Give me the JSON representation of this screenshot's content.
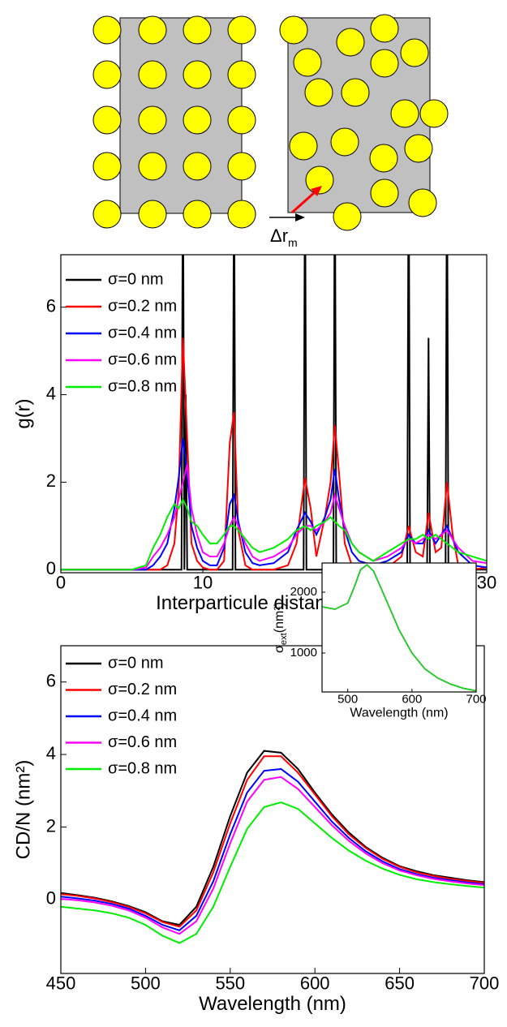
{
  "diagram": {
    "label": "Δr",
    "label_sub": "m"
  },
  "chart_data": [
    {
      "type": "line",
      "xlabel": "Interparticule distance (nm)",
      "ylabel": "g(r)",
      "xlim": [
        0,
        30
      ],
      "ylim": [
        -0.07,
        7.2
      ],
      "xticks": [
        0,
        10,
        20,
        30
      ],
      "yticks": [
        0,
        2,
        4,
        6
      ],
      "legend": "upper left",
      "x": [
        0,
        5,
        6,
        6.5,
        7,
        7.5,
        8,
        8.3,
        8.6,
        8.9,
        9.2,
        9.6,
        10,
        10.5,
        11,
        11.5,
        11.9,
        12.2,
        12.5,
        13,
        13.5,
        14,
        15,
        16,
        16.6,
        17.2,
        17.6,
        18,
        18.6,
        19.0,
        19.3,
        19.6,
        20,
        20.5,
        21,
        22,
        23,
        24,
        24.5,
        25,
        25.5,
        25.9,
        26.4,
        26.8,
        27.2,
        27.6,
        28,
        29,
        30
      ],
      "series": [
        {
          "name": "σ=0 nm",
          "color": "#000000",
          "x": [
            0,
            8.5,
            8.6,
            8.7,
            8.8,
            8.9,
            12.1,
            12.2,
            12.3,
            17.1,
            17.2,
            17.3,
            19.2,
            19.3,
            19.4,
            24.4,
            24.5,
            24.6,
            25.8,
            25.9,
            26.0,
            27.1,
            27.2,
            27.3,
            30
          ],
          "values": [
            0,
            0,
            10,
            0,
            4,
            0,
            0,
            10,
            0,
            0,
            10,
            0,
            0,
            10,
            0,
            0,
            10,
            0,
            0,
            5.3,
            0,
            0,
            10,
            0,
            0
          ]
        },
        {
          "name": "σ=0.2 nm",
          "color": "#ff0000",
          "values": [
            0,
            0,
            0,
            0,
            0,
            0.1,
            0.6,
            1.8,
            5.3,
            3.0,
            0.6,
            0.2,
            0.05,
            0,
            0,
            0.2,
            2.9,
            3.6,
            0.9,
            0.1,
            0,
            0,
            0,
            0.1,
            0.6,
            2.1,
            1.4,
            0.3,
            1.2,
            2.0,
            3.3,
            2.2,
            0.6,
            0.1,
            0,
            0,
            0.05,
            0.3,
            1.0,
            0.4,
            0.3,
            1.3,
            0.4,
            0.5,
            2.0,
            0.8,
            0.1,
            0,
            0.05
          ]
        },
        {
          "name": "σ=0.4 nm",
          "color": "#0000ff",
          "values": [
            0,
            0,
            0,
            0.1,
            0.3,
            0.6,
            1.4,
            2.1,
            3.0,
            2.2,
            1.0,
            0.5,
            0.2,
            0.1,
            0.1,
            0.5,
            1.5,
            1.7,
            1.1,
            0.4,
            0.15,
            0.1,
            0.15,
            0.4,
            0.9,
            1.3,
            1.1,
            0.8,
            1.2,
            1.6,
            2.3,
            1.6,
            0.9,
            0.4,
            0.2,
            0.1,
            0.2,
            0.4,
            0.8,
            0.6,
            0.6,
            0.9,
            0.6,
            0.8,
            1.0,
            0.7,
            0.4,
            0.1,
            0.05
          ]
        },
        {
          "name": "σ=0.6 nm",
          "color": "#ff00ff",
          "values": [
            0,
            0,
            0.05,
            0.3,
            0.5,
            0.8,
            1.2,
            1.6,
            2.0,
            2.4,
            1.4,
            0.8,
            0.4,
            0.3,
            0.3,
            0.6,
            1.0,
            1.2,
            1.0,
            0.6,
            0.3,
            0.2,
            0.3,
            0.5,
            0.8,
            1.0,
            1.0,
            0.9,
            1.1,
            1.3,
            1.7,
            1.4,
            1.0,
            0.6,
            0.4,
            0.2,
            0.3,
            0.5,
            0.7,
            0.6,
            0.7,
            0.8,
            0.7,
            0.8,
            0.9,
            0.7,
            0.5,
            0.2,
            0.15
          ]
        },
        {
          "name": "σ=0.8 nm",
          "color": "#00ee00",
          "values": [
            0,
            0,
            0.1,
            0.5,
            0.8,
            1.2,
            1.5,
            1.4,
            1.6,
            1.4,
            1.1,
            1.0,
            0.8,
            0.6,
            0.6,
            0.8,
            1.0,
            1.0,
            0.9,
            0.7,
            0.5,
            0.4,
            0.5,
            0.7,
            0.9,
            1.0,
            0.9,
            1.0,
            1.1,
            1.2,
            1.1,
            1.0,
            0.9,
            0.6,
            0.4,
            0.2,
            0.4,
            0.6,
            0.7,
            0.7,
            0.8,
            0.7,
            0.8,
            0.7,
            0.6,
            0.5,
            0.4,
            0.3,
            0.2
          ]
        }
      ]
    },
    {
      "type": "line",
      "xlabel": "Wavelength (nm)",
      "ylabel": "CD/N (nm²)",
      "xlim": [
        450,
        700
      ],
      "ylim": [
        -2.04,
        7.0
      ],
      "xticks": [
        450,
        500,
        550,
        600,
        650,
        700
      ],
      "yticks": [
        0,
        2,
        4,
        6
      ],
      "legend": "upper left",
      "x": [
        450,
        460,
        470,
        480,
        490,
        500,
        510,
        520,
        530,
        540,
        550,
        560,
        570,
        580,
        590,
        600,
        610,
        620,
        630,
        640,
        650,
        660,
        670,
        680,
        690,
        700
      ],
      "series": [
        {
          "name": "σ=0 nm",
          "color": "#000000",
          "values": [
            0.18,
            0.12,
            0.05,
            -0.05,
            -0.18,
            -0.35,
            -0.6,
            -0.7,
            -0.2,
            0.9,
            2.3,
            3.5,
            4.1,
            4.05,
            3.6,
            2.95,
            2.35,
            1.85,
            1.45,
            1.15,
            0.92,
            0.78,
            0.67,
            0.6,
            0.53,
            0.48
          ]
        },
        {
          "name": "σ=0.2 nm",
          "color": "#ff0000",
          "values": [
            0.15,
            0.1,
            0.03,
            -0.07,
            -0.2,
            -0.38,
            -0.62,
            -0.75,
            -0.3,
            0.75,
            2.1,
            3.3,
            3.95,
            3.95,
            3.5,
            2.9,
            2.3,
            1.8,
            1.42,
            1.12,
            0.9,
            0.75,
            0.65,
            0.57,
            0.51,
            0.46
          ]
        },
        {
          "name": "σ=0.4 nm",
          "color": "#0000ff",
          "values": [
            0.08,
            0.03,
            -0.03,
            -0.12,
            -0.25,
            -0.45,
            -0.7,
            -0.85,
            -0.45,
            0.5,
            1.8,
            2.95,
            3.55,
            3.6,
            3.25,
            2.7,
            2.15,
            1.7,
            1.33,
            1.05,
            0.84,
            0.7,
            0.6,
            0.53,
            0.47,
            0.42
          ]
        },
        {
          "name": "σ=0.6 nm",
          "color": "#ff00ff",
          "values": [
            0.02,
            -0.02,
            -0.08,
            -0.17,
            -0.3,
            -0.5,
            -0.77,
            -0.95,
            -0.6,
            0.3,
            1.55,
            2.7,
            3.3,
            3.38,
            3.05,
            2.55,
            2.05,
            1.62,
            1.27,
            1.0,
            0.8,
            0.67,
            0.57,
            0.5,
            0.44,
            0.4
          ]
        },
        {
          "name": "σ=0.8 nm",
          "color": "#00ee00",
          "values": [
            -0.2,
            -0.25,
            -0.3,
            -0.38,
            -0.5,
            -0.7,
            -1.0,
            -1.2,
            -0.95,
            -0.2,
            0.9,
            1.95,
            2.55,
            2.68,
            2.5,
            2.1,
            1.7,
            1.35,
            1.07,
            0.85,
            0.68,
            0.56,
            0.48,
            0.42,
            0.37,
            0.33
          ]
        }
      ]
    },
    {
      "type": "line",
      "xlabel": "Wavelength (nm)",
      "ylabel": "σ",
      "ylabel_sub": "ext",
      "ylabel_unit": "(nm²)",
      "xlim": [
        460,
        700
      ],
      "ylim": [
        360,
        2480
      ],
      "xticks": [
        500,
        600,
        700
      ],
      "yticks": [
        1000,
        2000
      ],
      "x": [
        460,
        480,
        500,
        510,
        520,
        530,
        540,
        560,
        580,
        600,
        620,
        640,
        660,
        680,
        700
      ],
      "series": [
        {
          "color": "#000000",
          "values": [
            1760,
            1720,
            1820,
            2080,
            2370,
            2450,
            2350,
            1870,
            1380,
            1000,
            740,
            590,
            490,
            420,
            380
          ]
        },
        {
          "color": "#ff0000",
          "values": [
            1760,
            1720,
            1820,
            2080,
            2370,
            2450,
            2350,
            1870,
            1380,
            1000,
            740,
            590,
            490,
            420,
            380
          ]
        },
        {
          "color": "#0000ff",
          "values": [
            1760,
            1720,
            1820,
            2080,
            2370,
            2450,
            2350,
            1870,
            1380,
            1000,
            740,
            590,
            490,
            420,
            380
          ]
        },
        {
          "color": "#ff00ff",
          "values": [
            1760,
            1720,
            1820,
            2080,
            2370,
            2450,
            2350,
            1870,
            1380,
            1000,
            740,
            590,
            490,
            420,
            380
          ]
        },
        {
          "color": "#00ee00",
          "values": [
            1760,
            1720,
            1820,
            2080,
            2370,
            2450,
            2350,
            1870,
            1380,
            1000,
            740,
            590,
            490,
            420,
            380
          ]
        }
      ]
    }
  ]
}
